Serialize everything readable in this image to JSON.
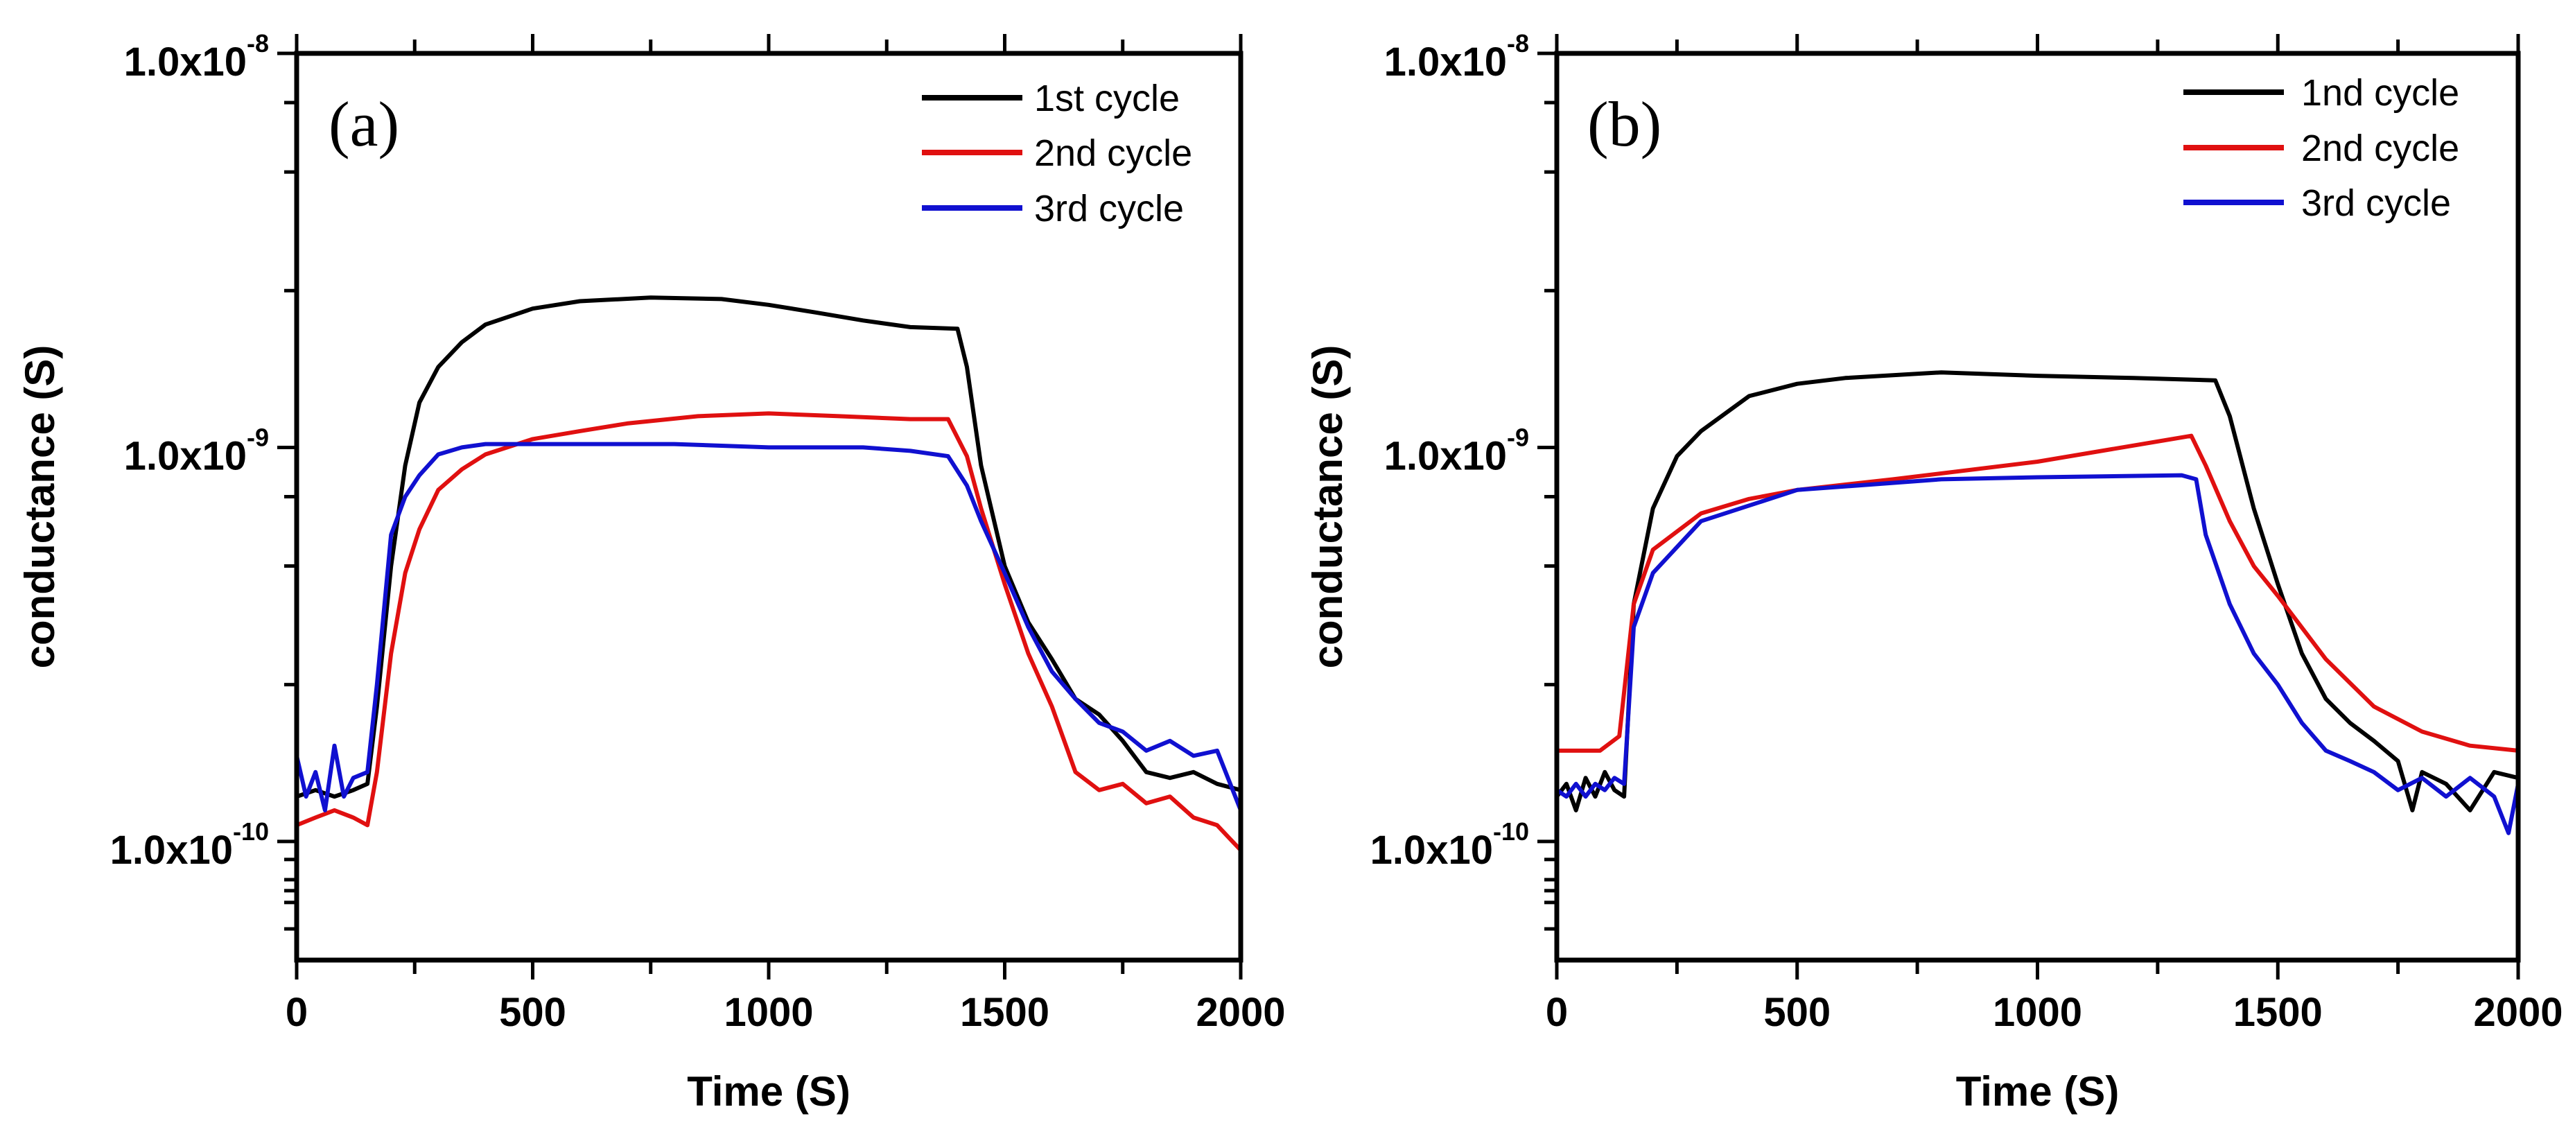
{
  "chart_data": [
    {
      "type": "line",
      "panel_label": "(a)",
      "xlabel": "Time (S)",
      "ylabel": "conductance (S)",
      "xlim": [
        0,
        2000
      ],
      "ylim": [
        5e-11,
        1e-08
      ],
      "yscale": "log",
      "xticks": [
        0,
        500,
        1000,
        1500,
        2000
      ],
      "xtick_labels": [
        "0",
        "500",
        "1000",
        "1500",
        "2000"
      ],
      "yticks": [
        1e-10,
        1e-09,
        1e-08
      ],
      "ytick_labels": [
        {
          "base": "1.0x10",
          "exp": "-10"
        },
        {
          "base": "1.0x10",
          "exp": "-9"
        },
        {
          "base": "1.0x10",
          "exp": "-8"
        }
      ],
      "grid": false,
      "legend_position": "top-right",
      "series": [
        {
          "name": "1st cycle",
          "color": "#000000",
          "x": [
            0,
            40,
            80,
            120,
            150,
            170,
            200,
            230,
            260,
            300,
            350,
            400,
            500,
            600,
            750,
            900,
            1000,
            1100,
            1200,
            1300,
            1400,
            1420,
            1450,
            1500,
            1550,
            1600,
            1650,
            1700,
            1750,
            1800,
            1850,
            1900,
            1950,
            2000
          ],
          "y": [
            1.3e-10,
            1.35e-10,
            1.3e-10,
            1.35e-10,
            1.4e-10,
            2.2e-10,
            5e-10,
            9e-10,
            1.3e-09,
            1.6e-09,
            1.85e-09,
            2.05e-09,
            2.25e-09,
            2.35e-09,
            2.4e-09,
            2.38e-09,
            2.3e-09,
            2.2e-09,
            2.1e-09,
            2.02e-09,
            2e-09,
            1.6e-09,
            9e-10,
            5e-10,
            3.6e-10,
            2.9e-10,
            2.3e-10,
            2.1e-10,
            1.8e-10,
            1.5e-10,
            1.45e-10,
            1.5e-10,
            1.4e-10,
            1.35e-10
          ]
        },
        {
          "name": "2nd cycle",
          "color": "#e01010",
          "x": [
            0,
            40,
            80,
            120,
            150,
            170,
            200,
            230,
            260,
            300,
            350,
            400,
            500,
            600,
            700,
            850,
            1000,
            1150,
            1300,
            1380,
            1420,
            1450,
            1500,
            1550,
            1600,
            1650,
            1700,
            1750,
            1800,
            1850,
            1900,
            1950,
            2000
          ],
          "y": [
            1.1e-10,
            1.15e-10,
            1.2e-10,
            1.15e-10,
            1.1e-10,
            1.5e-10,
            3e-10,
            4.8e-10,
            6.2e-10,
            7.8e-10,
            8.8e-10,
            9.6e-10,
            1.05e-09,
            1.1e-09,
            1.15e-09,
            1.2e-09,
            1.22e-09,
            1.2e-09,
            1.18e-09,
            1.18e-09,
            9.5e-10,
            7e-10,
            4.5e-10,
            3e-10,
            2.2e-10,
            1.5e-10,
            1.35e-10,
            1.4e-10,
            1.25e-10,
            1.3e-10,
            1.15e-10,
            1.1e-10,
            9.5e-11
          ]
        },
        {
          "name": "3rd cycle",
          "color": "#1010d0",
          "x": [
            0,
            20,
            40,
            60,
            80,
            100,
            120,
            150,
            170,
            200,
            230,
            260,
            300,
            350,
            400,
            500,
            600,
            800,
            1000,
            1200,
            1300,
            1380,
            1420,
            1450,
            1500,
            1550,
            1600,
            1650,
            1700,
            1750,
            1800,
            1850,
            1900,
            1950,
            2000
          ],
          "y": [
            1.65e-10,
            1.3e-10,
            1.5e-10,
            1.2e-10,
            1.75e-10,
            1.3e-10,
            1.45e-10,
            1.5e-10,
            2.5e-10,
            6e-10,
            7.5e-10,
            8.5e-10,
            9.6e-10,
            1e-09,
            1.02e-09,
            1.02e-09,
            1.02e-09,
            1.02e-09,
            1e-09,
            1e-09,
            9.8e-10,
            9.5e-10,
            8e-10,
            6.5e-10,
            4.8e-10,
            3.5e-10,
            2.7e-10,
            2.3e-10,
            2e-10,
            1.9e-10,
            1.7e-10,
            1.8e-10,
            1.65e-10,
            1.7e-10,
            1.2e-10
          ]
        }
      ]
    },
    {
      "type": "line",
      "panel_label": "(b)",
      "xlabel": "Time (S)",
      "ylabel": "conductance (S)",
      "xlim": [
        0,
        2000
      ],
      "ylim": [
        5e-11,
        1e-08
      ],
      "yscale": "log",
      "xticks": [
        0,
        500,
        1000,
        1500,
        2000
      ],
      "xtick_labels": [
        "0",
        "500",
        "1000",
        "1500",
        "2000"
      ],
      "yticks": [
        1e-10,
        1e-09,
        1e-08
      ],
      "ytick_labels": [
        {
          "base": "1.0x10",
          "exp": "-10"
        },
        {
          "base": "1.0x10",
          "exp": "-9"
        },
        {
          "base": "1.0x10",
          "exp": "-8"
        }
      ],
      "grid": false,
      "legend_position": "top-right",
      "series": [
        {
          "name": "1nd cycle",
          "color": "#000000",
          "x": [
            0,
            20,
            40,
            60,
            80,
            100,
            120,
            140,
            160,
            200,
            250,
            300,
            400,
            500,
            600,
            800,
            1000,
            1200,
            1370,
            1400,
            1450,
            1500,
            1550,
            1600,
            1650,
            1700,
            1750,
            1780,
            1800,
            1850,
            1900,
            1950,
            2000
          ],
          "y": [
            1.3e-10,
            1.4e-10,
            1.2e-10,
            1.45e-10,
            1.3e-10,
            1.5e-10,
            1.35e-10,
            1.3e-10,
            4e-10,
            7e-10,
            9.5e-10,
            1.1e-09,
            1.35e-09,
            1.45e-09,
            1.5e-09,
            1.55e-09,
            1.52e-09,
            1.5e-09,
            1.48e-09,
            1.2e-09,
            7e-10,
            4.5e-10,
            3e-10,
            2.3e-10,
            2e-10,
            1.8e-10,
            1.6e-10,
            1.2e-10,
            1.5e-10,
            1.4e-10,
            1.2e-10,
            1.5e-10,
            1.45e-10
          ]
        },
        {
          "name": "2nd cycle",
          "color": "#e01010",
          "x": [
            0,
            90,
            130,
            160,
            200,
            300,
            400,
            500,
            700,
            1000,
            1320,
            1350,
            1400,
            1450,
            1500,
            1600,
            1700,
            1800,
            1900,
            2000
          ],
          "y": [
            1.7e-10,
            1.7e-10,
            1.85e-10,
            4e-10,
            5.5e-10,
            6.8e-10,
            7.4e-10,
            7.8e-10,
            8.3e-10,
            9.2e-10,
            1.07e-09,
            9e-10,
            6.5e-10,
            5e-10,
            4.2e-10,
            2.9e-10,
            2.2e-10,
            1.9e-10,
            1.75e-10,
            1.7e-10
          ]
        },
        {
          "name": "3rd cycle",
          "color": "#1010d0",
          "x": [
            0,
            20,
            40,
            60,
            80,
            100,
            120,
            140,
            160,
            200,
            300,
            500,
            800,
            1000,
            1300,
            1330,
            1350,
            1400,
            1450,
            1500,
            1550,
            1600,
            1650,
            1700,
            1750,
            1800,
            1850,
            1900,
            1950,
            1980,
            2000
          ],
          "y": [
            1.35e-10,
            1.3e-10,
            1.4e-10,
            1.3e-10,
            1.4e-10,
            1.35e-10,
            1.45e-10,
            1.4e-10,
            3.5e-10,
            4.8e-10,
            6.5e-10,
            7.8e-10,
            8.3e-10,
            8.4e-10,
            8.5e-10,
            8.3e-10,
            6e-10,
            4e-10,
            3e-10,
            2.5e-10,
            2e-10,
            1.7e-10,
            1.6e-10,
            1.5e-10,
            1.35e-10,
            1.45e-10,
            1.3e-10,
            1.45e-10,
            1.3e-10,
            1.05e-10,
            1.4e-10
          ]
        }
      ]
    }
  ]
}
